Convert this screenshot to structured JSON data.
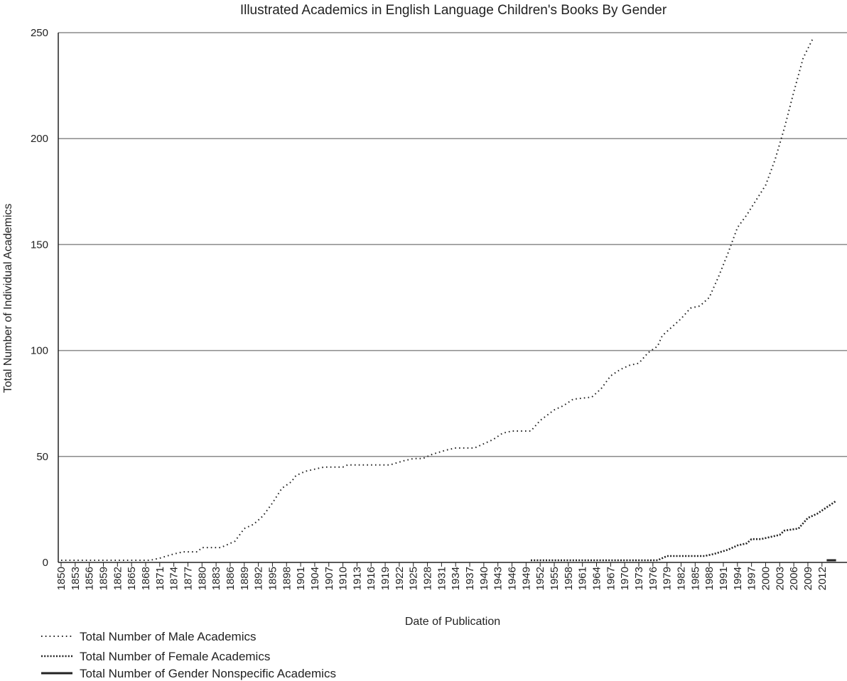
{
  "chart_data": {
    "type": "line",
    "title": "Illustrated Academics in English Language Children's Books By Gender",
    "xlabel": "Date of Publication",
    "ylabel": "Total Number of Individual Academics",
    "x_range": [
      1850,
      2014
    ],
    "ylim": [
      0,
      250
    ],
    "y_ticks": [
      0,
      50,
      100,
      150,
      200,
      250
    ],
    "x_tick_labels": [
      "1850",
      "1853",
      "1856",
      "1859",
      "1862",
      "1865",
      "1868",
      "1871",
      "1874",
      "1877",
      "1880",
      "1883",
      "1886",
      "1889",
      "1892",
      "1895",
      "1898",
      "1901",
      "1904",
      "1907",
      "1910",
      "1913",
      "1916",
      "1919",
      "1922",
      "1925",
      "1928",
      "1931",
      "1934",
      "1937",
      "1940",
      "1943",
      "1946",
      "1949",
      "1952",
      "1955",
      "1958",
      "1961",
      "1964",
      "1967",
      "1970",
      "1973",
      "1976",
      "1979",
      "1982",
      "1985",
      "1988",
      "1991",
      "1994",
      "1997",
      "2000",
      "2003",
      "2006",
      "2009",
      "2012"
    ],
    "grid": true,
    "legend_position": "bottom-left",
    "series": [
      {
        "name": "Total Number of Male Academics",
        "style": "sparse-dotted",
        "color": "#222222",
        "points": [
          [
            1850,
            1
          ],
          [
            1869,
            1
          ],
          [
            1871,
            2
          ],
          [
            1874,
            4
          ],
          [
            1876,
            5
          ],
          [
            1879,
            5
          ],
          [
            1880,
            7
          ],
          [
            1884,
            7
          ],
          [
            1887,
            10
          ],
          [
            1889,
            16
          ],
          [
            1891,
            18
          ],
          [
            1893,
            22
          ],
          [
            1895,
            28
          ],
          [
            1897,
            35
          ],
          [
            1899,
            38
          ],
          [
            1900,
            41
          ],
          [
            1902,
            43
          ],
          [
            1904,
            44
          ],
          [
            1906,
            45
          ],
          [
            1910,
            45
          ],
          [
            1911,
            46
          ],
          [
            1920,
            46
          ],
          [
            1923,
            48
          ],
          [
            1925,
            49
          ],
          [
            1927,
            49
          ],
          [
            1929,
            51
          ],
          [
            1932,
            53
          ],
          [
            1934,
            54
          ],
          [
            1938,
            54
          ],
          [
            1940,
            56
          ],
          [
            1942,
            58
          ],
          [
            1944,
            61
          ],
          [
            1946,
            62
          ],
          [
            1950,
            62
          ],
          [
            1952,
            67
          ],
          [
            1955,
            72
          ],
          [
            1957,
            74
          ],
          [
            1959,
            77
          ],
          [
            1963,
            78
          ],
          [
            1965,
            82
          ],
          [
            1967,
            88
          ],
          [
            1969,
            91
          ],
          [
            1971,
            93
          ],
          [
            1973,
            94
          ],
          [
            1975,
            99
          ],
          [
            1977,
            102
          ],
          [
            1978,
            107
          ],
          [
            1980,
            111
          ],
          [
            1982,
            115
          ],
          [
            1984,
            120
          ],
          [
            1986,
            121
          ],
          [
            1988,
            125
          ],
          [
            1990,
            135
          ],
          [
            1992,
            146
          ],
          [
            1994,
            158
          ],
          [
            1996,
            164
          ],
          [
            1998,
            171
          ],
          [
            2000,
            178
          ],
          [
            2002,
            190
          ],
          [
            2004,
            205
          ],
          [
            2006,
            222
          ],
          [
            2008,
            238
          ],
          [
            2010,
            247
          ]
        ]
      },
      {
        "name": "Total Number of Female Academics",
        "style": "dense-dotted",
        "color": "#222222",
        "points": [
          [
            1950,
            1
          ],
          [
            1977,
            1
          ],
          [
            1979,
            3
          ],
          [
            1987,
            3
          ],
          [
            1989,
            4
          ],
          [
            1992,
            6
          ],
          [
            1994,
            8
          ],
          [
            1996,
            9
          ],
          [
            1997,
            11
          ],
          [
            1999,
            11
          ],
          [
            2001,
            12
          ],
          [
            2003,
            13
          ],
          [
            2004,
            15
          ],
          [
            2007,
            16
          ],
          [
            2009,
            21
          ],
          [
            2011,
            23
          ],
          [
            2013,
            26
          ],
          [
            2015,
            29
          ]
        ]
      },
      {
        "name": "Total Number of Gender Nonspecific Academics",
        "style": "solid",
        "color": "#222222",
        "points": [
          [
            2013,
            1
          ],
          [
            2015,
            1
          ]
        ]
      }
    ]
  }
}
